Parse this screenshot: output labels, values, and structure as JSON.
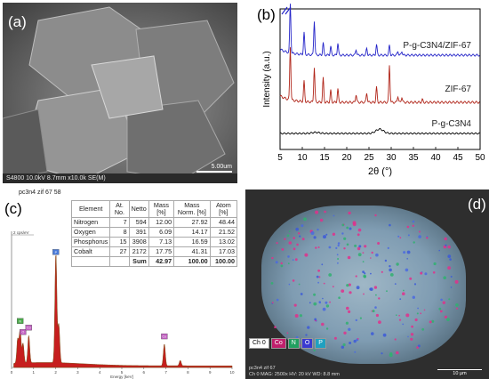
{
  "panel_labels": {
    "a": "(a)",
    "b": "(b)",
    "c": "(c)",
    "d": "(d)"
  },
  "sem": {
    "footer": "S4800 10.0kV 8.7mm x10.0k SE(M)",
    "scale": "5.00um"
  },
  "chart_data": {
    "type": "line",
    "xlabel": "2θ (°)",
    "ylabel": "Intensity (a.u.)",
    "xlim": [
      5,
      50
    ],
    "xticks": [
      5,
      10,
      15,
      20,
      25,
      30,
      35,
      40,
      45,
      50
    ],
    "grid": false,
    "series": [
      {
        "name": "P-g-C3N4/ZIF-67",
        "color": "#2323c8",
        "peaks": [
          [
            7.3,
            1.0
          ],
          [
            10.4,
            0.45
          ],
          [
            12.7,
            0.7
          ],
          [
            14.7,
            0.25
          ],
          [
            16.4,
            0.18
          ],
          [
            18.0,
            0.25
          ],
          [
            22.1,
            0.12
          ],
          [
            24.5,
            0.14
          ],
          [
            26.7,
            0.22
          ],
          [
            29.6,
            0.2
          ],
          [
            31.5,
            0.08
          ],
          [
            32.4,
            0.08
          ]
        ]
      },
      {
        "name": "ZIF-67",
        "color": "#b02418",
        "peaks": [
          [
            7.3,
            1.0
          ],
          [
            10.4,
            0.38
          ],
          [
            12.7,
            0.65
          ],
          [
            14.7,
            0.45
          ],
          [
            16.4,
            0.22
          ],
          [
            18.0,
            0.25
          ],
          [
            22.1,
            0.15
          ],
          [
            24.5,
            0.18
          ],
          [
            26.7,
            0.28
          ],
          [
            29.6,
            0.7
          ],
          [
            31.5,
            0.12
          ],
          [
            32.4,
            0.1
          ],
          [
            37.0,
            0.05
          ]
        ]
      },
      {
        "name": "P-g-C3N4",
        "color": "#000000",
        "peaks": [
          [
            13.0,
            0.03
          ],
          [
            27.4,
            0.12
          ]
        ]
      }
    ]
  },
  "eds": {
    "title": "pc3n4 zif 67 58",
    "headers": [
      "Element",
      "At. No.",
      "Netto",
      "Mass [%]",
      "Mass Norm. [%]",
      "Atom [%]"
    ],
    "rows": [
      [
        "Nitrogen",
        "7",
        "594",
        "12.00",
        "27.92",
        "48.44"
      ],
      [
        "Oxygen",
        "8",
        "391",
        "6.09",
        "14.17",
        "21.52"
      ],
      [
        "Phosphorus",
        "15",
        "3908",
        "7.13",
        "16.59",
        "13.02"
      ],
      [
        "Cobalt",
        "27",
        "2172",
        "17.75",
        "41.31",
        "17.03"
      ]
    ],
    "sum": [
      "",
      "",
      "Sum",
      "42.97",
      "100.00",
      "100.00"
    ],
    "y_marker": "2 cps/eV",
    "xlabel": "Energy [keV]",
    "xticks": [
      "0",
      "1",
      "2",
      "3",
      "4",
      "5",
      "6",
      "7",
      "8",
      "9",
      "10"
    ],
    "markers": [
      {
        "label": "N",
        "energy": 0.39,
        "color": "#4aa84a"
      },
      {
        "label": "O",
        "energy": 0.52,
        "color": "#c060c0"
      },
      {
        "label": "P",
        "energy": 2.01,
        "color": "#4a7ad8"
      },
      {
        "label": "Co",
        "energy": 6.93,
        "color": "#c060c0"
      },
      {
        "label": "Co",
        "energy": 0.78,
        "color": "#c060c0"
      }
    ],
    "peaks": [
      [
        0.28,
        0.22
      ],
      [
        0.39,
        0.3
      ],
      [
        0.52,
        0.18
      ],
      [
        0.78,
        0.25
      ],
      [
        2.01,
        1.0
      ],
      [
        2.14,
        0.35
      ],
      [
        6.93,
        0.2
      ],
      [
        7.65,
        0.05
      ]
    ]
  },
  "mapping": {
    "legend": [
      {
        "label": "Ch 0",
        "bg": "#ffffff",
        "fg": "#000000"
      },
      {
        "label": "Co",
        "bg": "#c0206c",
        "fg": "#ffffff"
      },
      {
        "label": "N",
        "bg": "#22a060",
        "fg": "#ffffff"
      },
      {
        "label": "O",
        "bg": "#3a3ad0",
        "fg": "#ffffff"
      },
      {
        "label": "P",
        "bg": "#20a0c0",
        "fg": "#ffffff"
      }
    ],
    "info1": "pc3n4 zif 67",
    "info2": "Ch 0   MAG: 2500x   HV: 20 kV   WD: 8.8 mm",
    "scale": "10 μm"
  }
}
